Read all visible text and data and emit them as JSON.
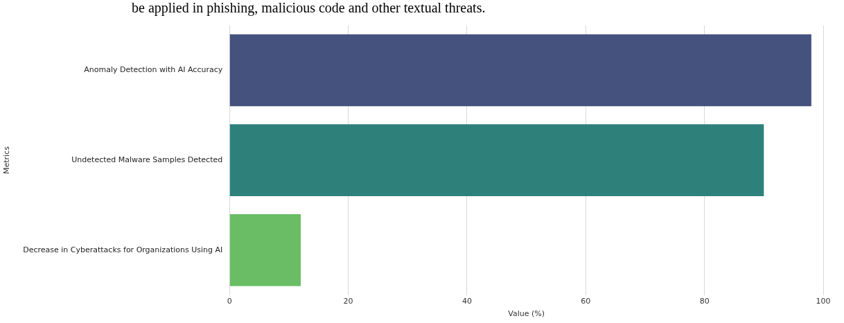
{
  "chart_data": {
    "type": "bar",
    "orientation": "horizontal",
    "categories": [
      "Anomaly Detection with AI Accuracy",
      "Undetected Malware Samples Detected",
      "Decrease in Cyberattacks for Organizations Using AI"
    ],
    "values": [
      98,
      90,
      12
    ],
    "colors": [
      "#46527e",
      "#2e817b",
      "#6abd64"
    ],
    "xlabel": "Value (%)",
    "ylabel": "Metrics",
    "xlim": [
      0,
      100
    ],
    "xticks": [
      0,
      20,
      40,
      60,
      80,
      100
    ],
    "grid": "x",
    "legend": false,
    "annotations": [
      "be applied in phishing, malicious code and other textual threats."
    ]
  }
}
